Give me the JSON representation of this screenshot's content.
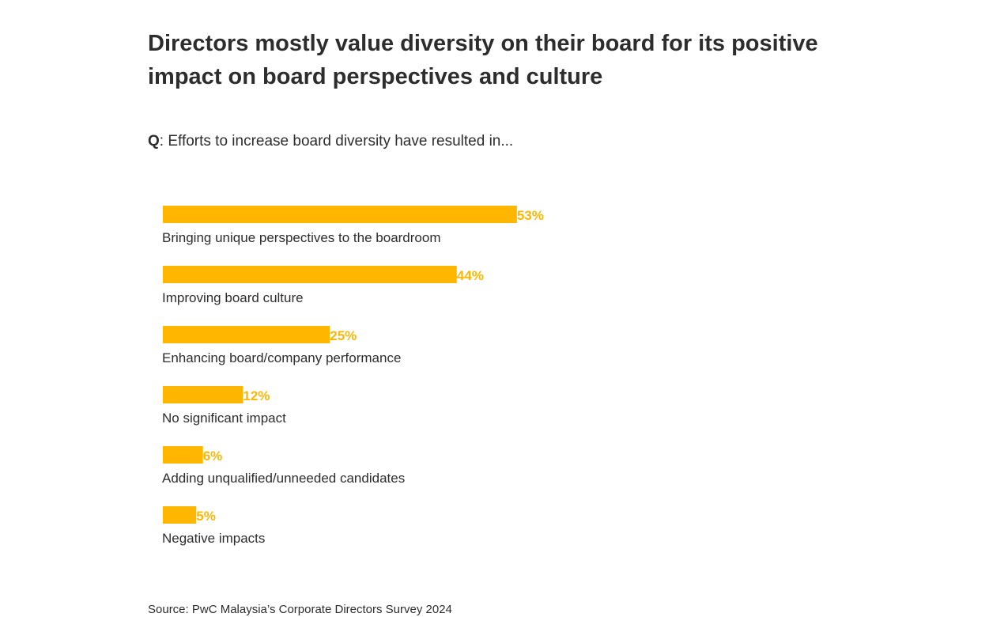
{
  "title": "Directors mostly value diversity on their board for its positive impact on board perspectives and culture",
  "question": {
    "prefix": "Q",
    "text": ": Efforts to increase board diversity have resulted in..."
  },
  "source": "Source: PwC Malaysia’s Corporate Directors Survey 2024",
  "chart_data": {
    "type": "bar",
    "orientation": "horizontal",
    "categories": [
      "Bringing unique perspectives to the boardroom",
      "Improving board culture",
      "Enhancing board/company performance",
      "No significant impact",
      "Adding unqualified/unneeded candidates",
      "Negative impacts"
    ],
    "values": [
      53,
      44,
      25,
      12,
      6,
      5
    ],
    "value_labels": [
      "53%",
      "44%",
      "25%",
      "12%",
      "6%",
      "5%"
    ],
    "unit": "%",
    "xlim": [
      0,
      100
    ],
    "grid": false,
    "colors": {
      "bar": "#FFB600",
      "value_label": "#FFB600",
      "category_label": "#2d2d2d"
    }
  }
}
